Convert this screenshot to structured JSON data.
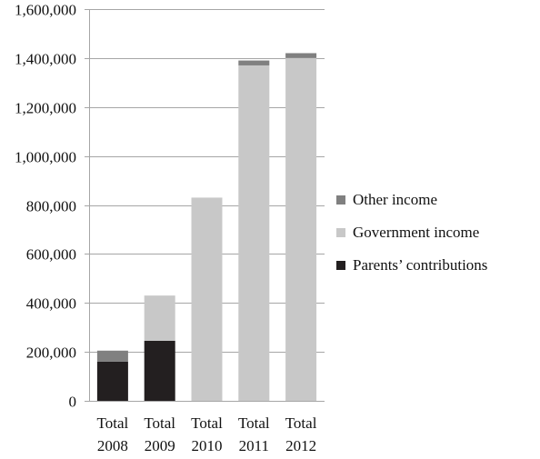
{
  "chart_data": {
    "type": "bar",
    "stacked": true,
    "title": "",
    "xlabel": "",
    "ylabel": "",
    "categories": [
      "Total 2008",
      "Total 2009",
      "Total 2010",
      "Total 2011",
      "Total 2012"
    ],
    "ylim": [
      0,
      1600000
    ],
    "y_ticks": [
      0,
      200000,
      400000,
      600000,
      800000,
      1000000,
      1200000,
      1400000,
      1600000
    ],
    "y_tick_labels": [
      "0",
      "200,000",
      "400,000",
      "600,000",
      "800,000",
      "1,000,000",
      "1,200,000",
      "1,400,000",
      "1,600,000"
    ],
    "grid": true,
    "legend_position": "right",
    "series": [
      {
        "name": "Parents’ contributions",
        "color": "#231f20",
        "values": [
          160000,
          245000,
          0,
          0,
          0
        ]
      },
      {
        "name": "Government income",
        "color": "#c8c8c8",
        "values": [
          0,
          185000,
          830000,
          1370000,
          1400000
        ]
      },
      {
        "name": "Other income",
        "color": "#808080",
        "values": [
          45000,
          0,
          0,
          20000,
          20000
        ]
      }
    ],
    "legend_order": [
      "Other income",
      "Government income",
      "Parents’ contributions"
    ]
  }
}
